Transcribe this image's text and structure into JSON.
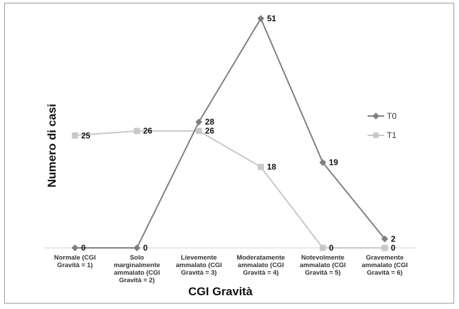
{
  "chart_data": {
    "type": "line",
    "xlabel": "CGI Gravità",
    "ylabel": "Numero di casi",
    "categories": [
      "Normale (CGI Gravità = 1)",
      "Solo marginalmente ammalato (CGI Gravità = 2)",
      "Lievemente ammalato (CGI Gravità = 3)",
      "Moderatamente ammalato (CGI Gravità = 4)",
      "Notevolmente ammalato (CGI Gravità = 5)",
      "Gravemente ammalato (CGI Gravità = 6)"
    ],
    "series": [
      {
        "name": "T0",
        "values": [
          0,
          0,
          28,
          51,
          19,
          2
        ],
        "color": "#7f7f7f",
        "marker": "diamond"
      },
      {
        "name": "T1",
        "values": [
          25,
          26,
          26,
          18,
          0,
          0
        ],
        "color": "#c8c8c8",
        "marker": "square"
      }
    ],
    "ylim": [
      0,
      51
    ],
    "grid": false,
    "legend": "right",
    "data_labels": true
  }
}
